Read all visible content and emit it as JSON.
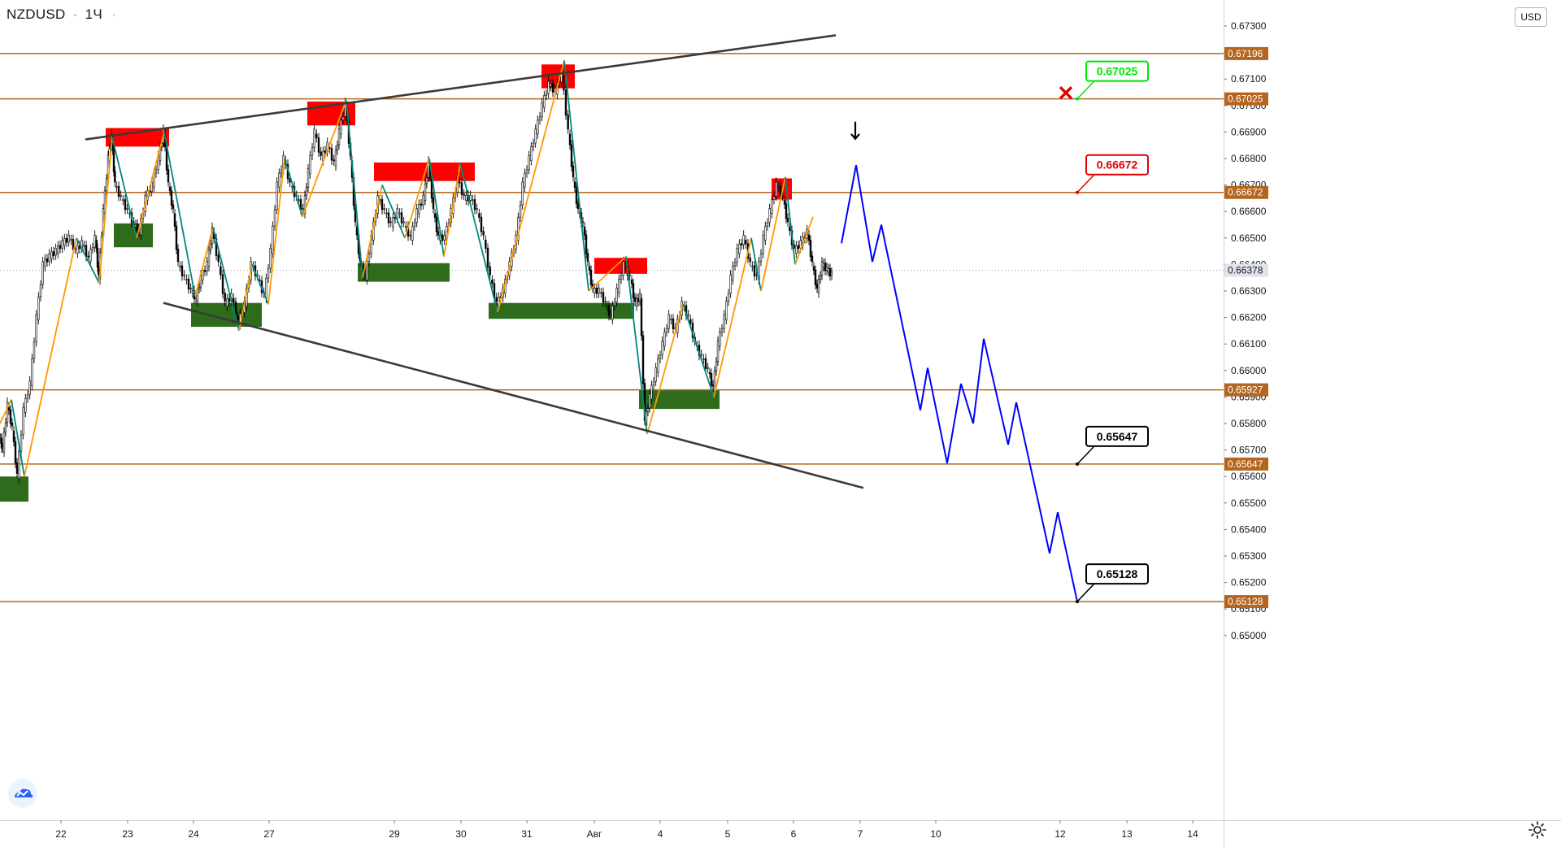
{
  "header": {
    "symbol": "NZDUSD",
    "separator": "·",
    "interval": "1Ч",
    "dot": "·",
    "currency": "USD"
  },
  "colors": {
    "resistance_line": "#b5651d",
    "trend_line": "#3a3a3a",
    "supply_zone": "#ff0000",
    "demand_zone": "#2e6b1d",
    "zigzag_up": "#ff9800",
    "zigzag_down": "#00897b",
    "forecast": "#0000ff",
    "label_green": "#00e600",
    "label_red": "#e00000",
    "label_black": "#000000",
    "x_mark": "#e00000"
  },
  "chart_data": {
    "type": "candlestick",
    "title": "NZDUSD",
    "interval": "1Ч",
    "currency": "USD",
    "ylim": [
      0.6493,
      0.674
    ],
    "y_ticks": [
      "0.65000",
      "0.65100",
      "0.65200",
      "0.65300",
      "0.65400",
      "0.65500",
      "0.65600",
      "0.65700",
      "0.65800",
      "0.65900",
      "0.66000",
      "0.66100",
      "0.66200",
      "0.66300",
      "0.66400",
      "0.66500",
      "0.66600",
      "0.66700",
      "0.66800",
      "0.66900",
      "0.67000",
      "0.67100",
      "0.67200",
      "0.67300"
    ],
    "x_ticks": [
      "22",
      "23",
      "24",
      "27",
      "29",
      "30",
      "31",
      "Авг",
      "4",
      "5",
      "6",
      "7",
      "10",
      "12",
      "13",
      "14"
    ],
    "current_price": "0.66378",
    "levels": [
      {
        "price": "0.67196",
        "value": 0.67196
      },
      {
        "price": "0.67025",
        "value": 0.67025
      },
      {
        "price": "0.66672",
        "value": 0.66672
      },
      {
        "price": "0.65927",
        "value": 0.65927
      },
      {
        "price": "0.65647",
        "value": 0.65647
      },
      {
        "price": "0.65128",
        "value": 0.65128
      }
    ],
    "callouts": [
      {
        "text": "0.67025",
        "color": "green",
        "value": 0.67025,
        "note": "stop"
      },
      {
        "text": "0.66672",
        "color": "red",
        "value": 0.66672
      },
      {
        "text": "0.65647",
        "color": "black",
        "value": 0.65647
      },
      {
        "text": "0.65128",
        "color": "black",
        "value": 0.65128
      }
    ],
    "price_path": [
      [
        0,
        0.6575
      ],
      [
        4,
        0.657
      ],
      [
        10,
        0.6587
      ],
      [
        16,
        0.6578
      ],
      [
        22,
        0.656
      ],
      [
        30,
        0.6585
      ],
      [
        38,
        0.6595
      ],
      [
        46,
        0.662
      ],
      [
        54,
        0.664
      ],
      [
        62,
        0.6643
      ],
      [
        70,
        0.6645
      ],
      [
        78,
        0.6648
      ],
      [
        86,
        0.665
      ],
      [
        94,
        0.6645
      ],
      [
        102,
        0.6648
      ],
      [
        110,
        0.6642
      ],
      [
        118,
        0.665
      ],
      [
        122,
        0.6635
      ],
      [
        128,
        0.666
      ],
      [
        134,
        0.668
      ],
      [
        138,
        0.6688
      ],
      [
        142,
        0.667
      ],
      [
        150,
        0.6665
      ],
      [
        158,
        0.666
      ],
      [
        166,
        0.6655
      ],
      [
        172,
        0.6652
      ],
      [
        180,
        0.6665
      ],
      [
        188,
        0.667
      ],
      [
        196,
        0.668
      ],
      [
        202,
        0.669
      ],
      [
        208,
        0.667
      ],
      [
        214,
        0.666
      ],
      [
        220,
        0.664
      ],
      [
        228,
        0.6635
      ],
      [
        236,
        0.663
      ],
      [
        242,
        0.6627
      ],
      [
        248,
        0.6635
      ],
      [
        256,
        0.664
      ],
      [
        262,
        0.6653
      ],
      [
        270,
        0.664
      ],
      [
        278,
        0.6625
      ],
      [
        286,
        0.6628
      ],
      [
        294,
        0.6618
      ],
      [
        302,
        0.6625
      ],
      [
        310,
        0.664
      ],
      [
        318,
        0.6635
      ],
      [
        326,
        0.6628
      ],
      [
        334,
        0.6645
      ],
      [
        342,
        0.667
      ],
      [
        350,
        0.668
      ],
      [
        358,
        0.667
      ],
      [
        366,
        0.6665
      ],
      [
        374,
        0.666
      ],
      [
        380,
        0.6675
      ],
      [
        388,
        0.669
      ],
      [
        396,
        0.668
      ],
      [
        404,
        0.6685
      ],
      [
        412,
        0.6678
      ],
      [
        418,
        0.669
      ],
      [
        426,
        0.67
      ],
      [
        432,
        0.668
      ],
      [
        438,
        0.6655
      ],
      [
        444,
        0.664
      ],
      [
        450,
        0.6635
      ],
      [
        458,
        0.665
      ],
      [
        466,
        0.6665
      ],
      [
        474,
        0.666
      ],
      [
        482,
        0.6655
      ],
      [
        490,
        0.666
      ],
      [
        498,
        0.6655
      ],
      [
        506,
        0.665
      ],
      [
        514,
        0.666
      ],
      [
        522,
        0.6665
      ],
      [
        528,
        0.6678
      ],
      [
        534,
        0.666
      ],
      [
        540,
        0.665
      ],
      [
        548,
        0.665
      ],
      [
        556,
        0.666
      ],
      [
        564,
        0.6672
      ],
      [
        572,
        0.6665
      ],
      [
        580,
        0.6665
      ],
      [
        588,
        0.666
      ],
      [
        596,
        0.665
      ],
      [
        604,
        0.6635
      ],
      [
        612,
        0.6625
      ],
      [
        620,
        0.663
      ],
      [
        628,
        0.664
      ],
      [
        636,
        0.665
      ],
      [
        644,
        0.667
      ],
      [
        652,
        0.668
      ],
      [
        660,
        0.669
      ],
      [
        668,
        0.67
      ],
      [
        676,
        0.6708
      ],
      [
        684,
        0.6705
      ],
      [
        692,
        0.6712
      ],
      [
        700,
        0.669
      ],
      [
        706,
        0.6672
      ],
      [
        712,
        0.666
      ],
      [
        718,
        0.6655
      ],
      [
        724,
        0.664
      ],
      [
        730,
        0.663
      ],
      [
        738,
        0.663
      ],
      [
        746,
        0.6625
      ],
      [
        752,
        0.662
      ],
      [
        760,
        0.663
      ],
      [
        768,
        0.664
      ],
      [
        776,
        0.6635
      ],
      [
        782,
        0.6625
      ],
      [
        788,
        0.6628
      ],
      [
        794,
        0.658
      ],
      [
        800,
        0.659
      ],
      [
        808,
        0.66
      ],
      [
        816,
        0.661
      ],
      [
        824,
        0.662
      ],
      [
        832,
        0.6615
      ],
      [
        840,
        0.6625
      ],
      [
        848,
        0.662
      ],
      [
        856,
        0.661
      ],
      [
        864,
        0.6605
      ],
      [
        872,
        0.66
      ],
      [
        878,
        0.6593
      ],
      [
        884,
        0.661
      ],
      [
        892,
        0.662
      ],
      [
        900,
        0.6635
      ],
      [
        908,
        0.6645
      ],
      [
        916,
        0.665
      ],
      [
        924,
        0.664
      ],
      [
        932,
        0.6635
      ],
      [
        940,
        0.665
      ],
      [
        948,
        0.666
      ],
      [
        956,
        0.667
      ],
      [
        964,
        0.6665
      ],
      [
        970,
        0.6655
      ],
      [
        978,
        0.6645
      ],
      [
        986,
        0.6648
      ],
      [
        994,
        0.6652
      ],
      [
        1000,
        0.664
      ],
      [
        1006,
        0.663
      ],
      [
        1012,
        0.664
      ],
      [
        1018,
        0.6638
      ],
      [
        1024,
        0.6636
      ]
    ],
    "supply_zones": [
      {
        "from": 130,
        "to": 208,
        "high": 0.66915,
        "low": 0.66845
      },
      {
        "from": 378,
        "to": 437,
        "high": 0.67015,
        "low": 0.66925
      },
      {
        "from": 460,
        "to": 584,
        "high": 0.66785,
        "low": 0.66715
      },
      {
        "from": 666,
        "to": 707,
        "high": 0.67155,
        "low": 0.67065
      },
      {
        "from": 731,
        "to": 796,
        "high": 0.66425,
        "low": 0.66365
      },
      {
        "from": 949,
        "to": 974,
        "high": 0.66725,
        "low": 0.66645
      }
    ],
    "demand_zones": [
      {
        "from": 0,
        "to": 35,
        "high": 0.656,
        "low": 0.65505
      },
      {
        "from": 140,
        "to": 188,
        "high": 0.66555,
        "low": 0.66465
      },
      {
        "from": 235,
        "to": 322,
        "high": 0.66255,
        "low": 0.66165
      },
      {
        "from": 440,
        "to": 553,
        "high": 0.66405,
        "low": 0.66335
      },
      {
        "from": 601,
        "to": 780,
        "high": 0.66255,
        "low": 0.66195
      },
      {
        "from": 786,
        "to": 885,
        "high": 0.65925,
        "low": 0.65855
      }
    ],
    "trend_lines": [
      {
        "from": [
          105,
          0.66872
        ],
        "to": [
          1028,
          0.67265
        ]
      },
      {
        "from": [
          201,
          0.66255
        ],
        "to": [
          1062,
          0.65557
        ]
      }
    ],
    "zigzag": [
      [
        0,
        0.658
      ],
      [
        14,
        0.6589
      ],
      [
        30,
        0.656
      ],
      [
        94,
        0.665
      ],
      [
        122,
        0.6633
      ],
      [
        138,
        0.6688
      ],
      [
        168,
        0.665
      ],
      [
        202,
        0.669
      ],
      [
        240,
        0.6628
      ],
      [
        262,
        0.6654
      ],
      [
        294,
        0.6615
      ],
      [
        310,
        0.664
      ],
      [
        330,
        0.6625
      ],
      [
        350,
        0.668
      ],
      [
        372,
        0.6658
      ],
      [
        426,
        0.6702
      ],
      [
        446,
        0.6635
      ],
      [
        470,
        0.667
      ],
      [
        498,
        0.665
      ],
      [
        528,
        0.668
      ],
      [
        546,
        0.6643
      ],
      [
        566,
        0.6678
      ],
      [
        612,
        0.6622
      ],
      [
        694,
        0.6717
      ],
      [
        724,
        0.663
      ],
      [
        770,
        0.6643
      ],
      [
        796,
        0.6576
      ],
      [
        840,
        0.6625
      ],
      [
        878,
        0.659
      ],
      [
        924,
        0.665
      ],
      [
        936,
        0.663
      ],
      [
        966,
        0.6673
      ],
      [
        978,
        0.664
      ],
      [
        1000,
        0.6658
      ]
    ],
    "forecast": [
      [
        1035,
        0.6648
      ],
      [
        1053,
        0.66775
      ],
      [
        1073,
        0.6641
      ],
      [
        1084,
        0.6655
      ],
      [
        1132,
        0.6585
      ],
      [
        1141,
        0.6601
      ],
      [
        1165,
        0.6565
      ],
      [
        1182,
        0.6595
      ],
      [
        1197,
        0.658
      ],
      [
        1210,
        0.6612
      ],
      [
        1240,
        0.6572
      ],
      [
        1250,
        0.6588
      ],
      [
        1291,
        0.6531
      ],
      [
        1301,
        0.65465
      ],
      [
        1325,
        0.65128
      ]
    ],
    "forecast_peak_arrow": {
      "at": 1052,
      "value": 0.66905
    },
    "stop_mark": {
      "at": 1311,
      "value": 0.67048
    },
    "grid": false,
    "legend": "none"
  }
}
